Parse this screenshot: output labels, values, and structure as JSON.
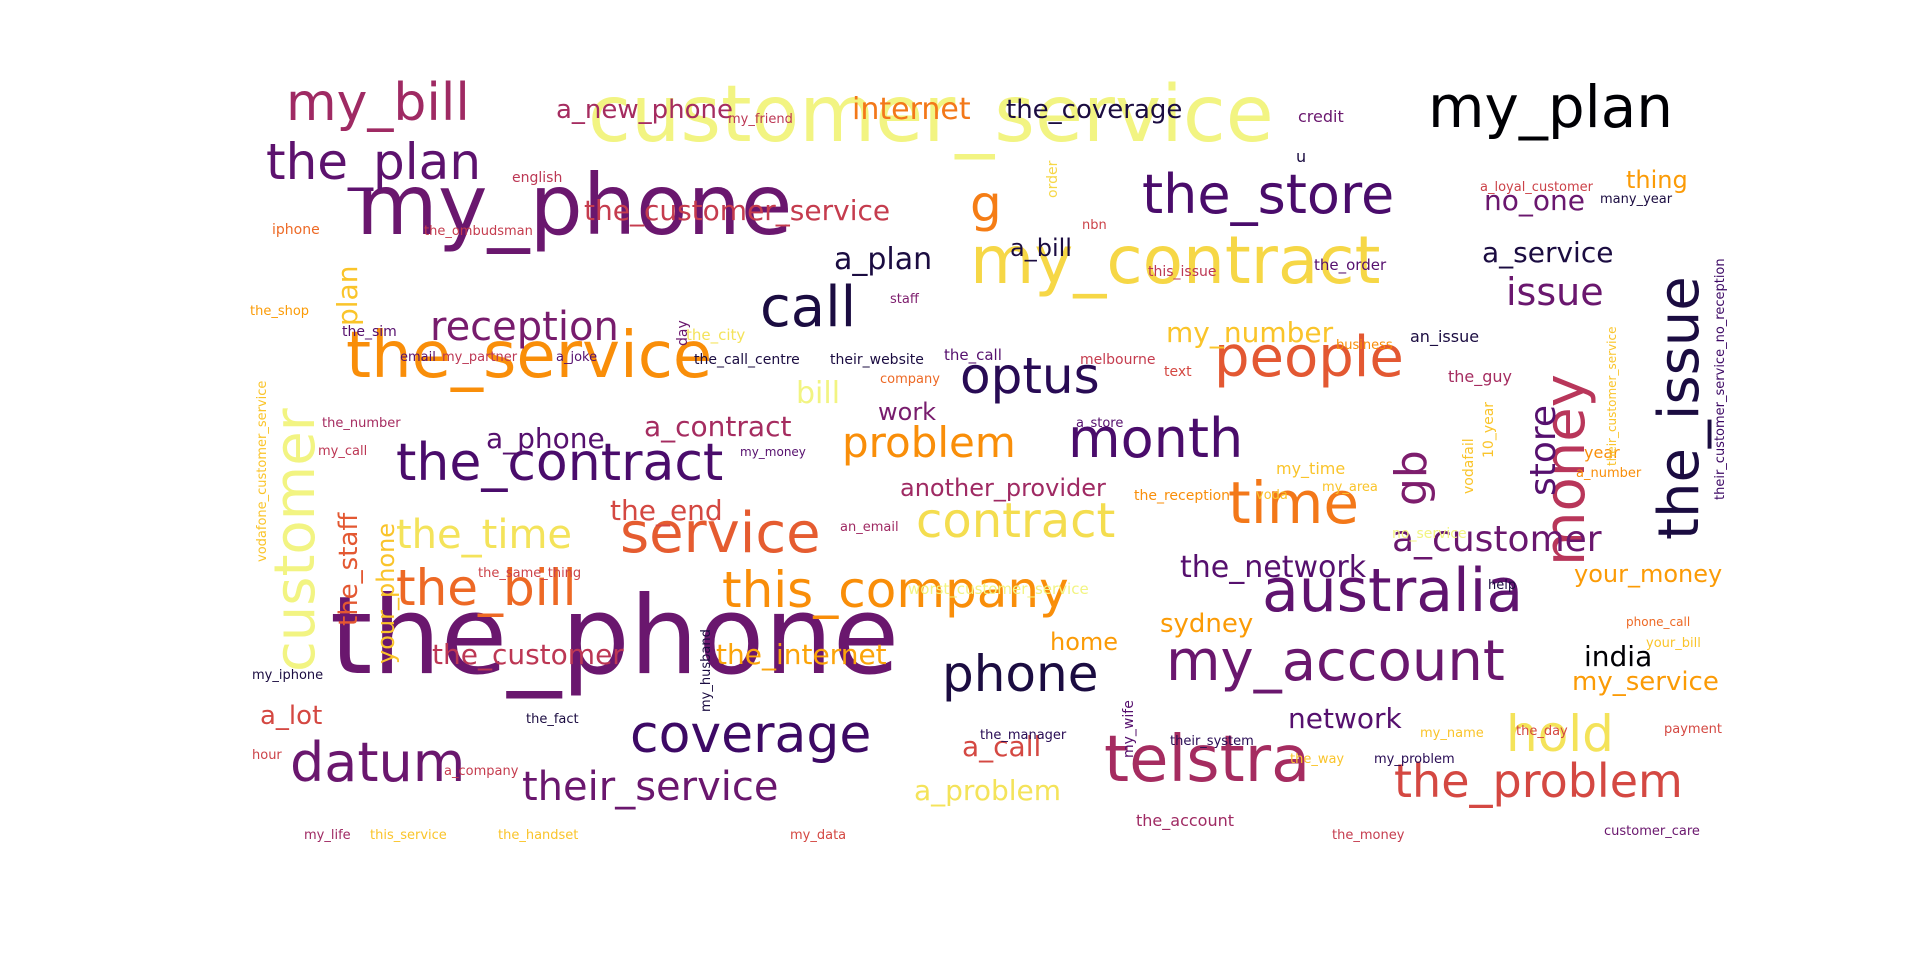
{
  "words": [
    {
      "text": "the_phone",
      "color": "#6a176e"
    },
    {
      "text": "customer_service",
      "color": "#f2f482"
    },
    {
      "text": "my_phone",
      "color": "#6a176e"
    },
    {
      "text": "my_contract",
      "color": "#f6d746"
    },
    {
      "text": "the_service",
      "color": "#f98e09"
    },
    {
      "text": "my_plan",
      "color": "#000004"
    },
    {
      "text": "the_issue",
      "color": "#1b0c41"
    },
    {
      "text": "money",
      "color": "#b8365a"
    },
    {
      "text": "customer",
      "color": "#f2f482"
    },
    {
      "text": "coverage",
      "color": "#3d0965"
    },
    {
      "text": "telstra",
      "color": "#a52c60"
    },
    {
      "text": "australia",
      "color": "#5f136e"
    },
    {
      "text": "service",
      "color": "#e55c30"
    },
    {
      "text": "time",
      "color": "#f37819"
    },
    {
      "text": "the_store",
      "color": "#4a0c6b"
    },
    {
      "text": "my_account",
      "color": "#6a176e"
    },
    {
      "text": "people",
      "color": "#e35832"
    },
    {
      "text": "the_plan",
      "color": "#5d126e"
    },
    {
      "text": "my_bill",
      "color": "#9f2a63"
    },
    {
      "text": "the_bill",
      "color": "#ed6925"
    },
    {
      "text": "this_company",
      "color": "#f98e09"
    },
    {
      "text": "contract",
      "color": "#f4dd4f"
    },
    {
      "text": "the_contract",
      "color": "#4a0c6b"
    },
    {
      "text": "month",
      "color": "#4a0c6b"
    },
    {
      "text": "datum",
      "color": "#6a176e"
    },
    {
      "text": "the_problem",
      "color": "#d44842"
    },
    {
      "text": "phone",
      "color": "#1b0c41"
    },
    {
      "text": "call",
      "color": "#1b0c41"
    },
    {
      "text": "optus",
      "color": "#280b54"
    },
    {
      "text": "hold",
      "color": "#f4e35a"
    },
    {
      "text": "gb",
      "color": "#7d1d6d"
    },
    {
      "text": "g",
      "color": "#f57d15"
    },
    {
      "text": "their_service",
      "color": "#6a176e"
    },
    {
      "text": "reception",
      "color": "#781c6d"
    },
    {
      "text": "problem",
      "color": "#f98e09"
    },
    {
      "text": "the_time",
      "color": "#f4e35a"
    },
    {
      "text": "the_network",
      "color": "#56106e"
    },
    {
      "text": "a_customer",
      "color": "#6a176e"
    },
    {
      "text": "the_customer_service",
      "color": "#c53c4e"
    },
    {
      "text": "store",
      "color": "#56106e"
    },
    {
      "text": "issue",
      "color": "#6a176e"
    },
    {
      "text": "the_customer",
      "color": "#bc3754"
    },
    {
      "text": "the_internet",
      "color": "#fba40a"
    },
    {
      "text": "a_plan",
      "color": "#1b0c41"
    },
    {
      "text": "a_service",
      "color": "#1b0c41"
    },
    {
      "text": "no_one",
      "color": "#6a176e"
    },
    {
      "text": "a_contract",
      "color": "#a52c60"
    },
    {
      "text": "my_number",
      "color": "#fac42a"
    },
    {
      "text": "another_provider",
      "color": "#9f2a63"
    },
    {
      "text": "the_end",
      "color": "#d44842"
    },
    {
      "text": "a_new_phone",
      "color": "#a52c60"
    },
    {
      "text": "internet",
      "color": "#f37819"
    },
    {
      "text": "the_coverage",
      "color": "#1b0c41"
    },
    {
      "text": "a_phone",
      "color": "#56106e"
    },
    {
      "text": "a_problem",
      "color": "#f4e35a"
    },
    {
      "text": "a_call",
      "color": "#d44842"
    },
    {
      "text": "network",
      "color": "#56106e"
    },
    {
      "text": "my_service",
      "color": "#fb9b06"
    },
    {
      "text": "your_money",
      "color": "#fb9b06"
    },
    {
      "text": "india",
      "color": "#000004"
    },
    {
      "text": "sydney",
      "color": "#fb9b06"
    },
    {
      "text": "home",
      "color": "#fb9b06"
    },
    {
      "text": "the_staff",
      "color": "#e35832"
    },
    {
      "text": "your_phone",
      "color": "#fac42a"
    },
    {
      "text": "plan",
      "color": "#fac42a"
    },
    {
      "text": "a_lot",
      "color": "#d44842"
    },
    {
      "text": "work",
      "color": "#781c6d"
    },
    {
      "text": "a_bill",
      "color": "#1b0c41"
    },
    {
      "text": "bill",
      "color": "#f2f482"
    },
    {
      "text": "thing",
      "color": "#fb9b06"
    },
    {
      "text": "credit",
      "color": "#6a176e"
    },
    {
      "text": "u",
      "color": "#1b0c41"
    },
    {
      "text": "english",
      "color": "#bc3754"
    },
    {
      "text": "my_friend",
      "color": "#bc3754"
    },
    {
      "text": "order",
      "color": "#f6d746"
    },
    {
      "text": "iphone",
      "color": "#ed6925"
    },
    {
      "text": "the_ombudsman",
      "color": "#c53c4e"
    },
    {
      "text": "nbn",
      "color": "#cc4248"
    },
    {
      "text": "this_issue",
      "color": "#bc3754"
    },
    {
      "text": "the_order",
      "color": "#56106e"
    },
    {
      "text": "staff",
      "color": "#7d1d6d"
    },
    {
      "text": "the_shop",
      "color": "#fb9b06"
    },
    {
      "text": "the_sim",
      "color": "#56106e"
    },
    {
      "text": "day",
      "color": "#6a176e"
    },
    {
      "text": "the_city",
      "color": "#f4e35a"
    },
    {
      "text": "email",
      "color": "#56106e"
    },
    {
      "text": "my_partner",
      "color": "#bc3754"
    },
    {
      "text": "a_joke",
      "color": "#56106e"
    },
    {
      "text": "the_call_centre",
      "color": "#1b0c41"
    },
    {
      "text": "their_website",
      "color": "#1b0c41"
    },
    {
      "text": "the_call",
      "color": "#56106e"
    },
    {
      "text": "melbourne",
      "color": "#c53c4e"
    },
    {
      "text": "business",
      "color": "#f98e09"
    },
    {
      "text": "an_issue",
      "color": "#1b0c41"
    },
    {
      "text": "text",
      "color": "#d44842"
    },
    {
      "text": "company",
      "color": "#ed6925"
    },
    {
      "text": "the_guy",
      "color": "#a52c60"
    },
    {
      "text": "the_number",
      "color": "#a52c60"
    },
    {
      "text": "a_store",
      "color": "#56106e"
    },
    {
      "text": "my_call",
      "color": "#bc3754"
    },
    {
      "text": "my_money",
      "color": "#56106e"
    },
    {
      "text": "my_time",
      "color": "#fac42a"
    },
    {
      "text": "my_area",
      "color": "#fac42a"
    },
    {
      "text": "vodafone_customer_service",
      "color": "#fac42a"
    },
    {
      "text": "the_reception",
      "color": "#f98e09"
    },
    {
      "text": "voda",
      "color": "#fac42a"
    },
    {
      "text": "vodafail",
      "color": "#fac42a"
    },
    {
      "text": "10_year",
      "color": "#fac42a"
    },
    {
      "text": "year",
      "color": "#f98e09"
    },
    {
      "text": "a_number",
      "color": "#f98e09"
    },
    {
      "text": "their_customer_service",
      "color": "#fac42a"
    },
    {
      "text": "their_customer_service_no_reception",
      "color": "#3d0965"
    },
    {
      "text": "a_loyal_customer",
      "color": "#cc4248"
    },
    {
      "text": "many_year",
      "color": "#1b0c41"
    },
    {
      "text": "an_email",
      "color": "#9f2a63"
    },
    {
      "text": "no_service",
      "color": "#f2f482"
    },
    {
      "text": "the_same_thing",
      "color": "#cc4248"
    },
    {
      "text": "worst_customer_service",
      "color": "#f2f482"
    },
    {
      "text": "help",
      "color": "#1b0c41"
    },
    {
      "text": "phone_call",
      "color": "#ed6925"
    },
    {
      "text": "your_bill",
      "color": "#fac42a"
    },
    {
      "text": "my_iphone",
      "color": "#1b0c41"
    },
    {
      "text": "my_husband",
      "color": "#1b0c41"
    },
    {
      "text": "the_fact",
      "color": "#1b0c41"
    },
    {
      "text": "my_wife",
      "color": "#56106e"
    },
    {
      "text": "the_manager",
      "color": "#280b54"
    },
    {
      "text": "their_system",
      "color": "#280b54"
    },
    {
      "text": "my_name",
      "color": "#fac42a"
    },
    {
      "text": "the_day",
      "color": "#d44842"
    },
    {
      "text": "payment",
      "color": "#d44842"
    },
    {
      "text": "hour",
      "color": "#cc4248"
    },
    {
      "text": "a_company",
      "color": "#c53c4e"
    },
    {
      "text": "the_way",
      "color": "#fac42a"
    },
    {
      "text": "my_problem",
      "color": "#280b54"
    },
    {
      "text": "my_life",
      "color": "#9f2a63"
    },
    {
      "text": "this_service",
      "color": "#fac42a"
    },
    {
      "text": "the_handset",
      "color": "#fac42a"
    },
    {
      "text": "my_data",
      "color": "#d44842"
    },
    {
      "text": "the_account",
      "color": "#9f2a63"
    },
    {
      "text": "the_money",
      "color": "#c53c4e"
    },
    {
      "text": "customer_care",
      "color": "#6a176e"
    }
  ]
}
